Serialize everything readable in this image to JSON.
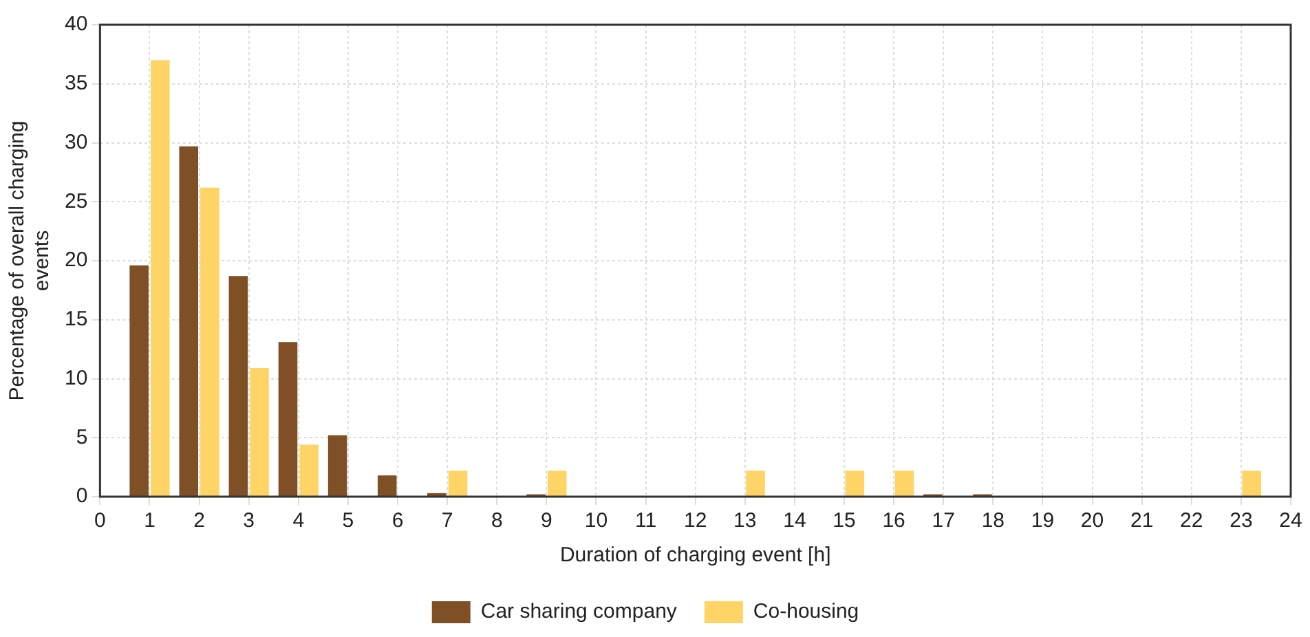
{
  "chart_data": {
    "type": "bar",
    "xlabel": "Duration of charging event [h]",
    "ylabel": "Percentage of overall charging events",
    "x": [
      1,
      2,
      3,
      4,
      5,
      6,
      7,
      8,
      9,
      10,
      11,
      12,
      13,
      14,
      15,
      16,
      17,
      18,
      19,
      20,
      21,
      22,
      23
    ],
    "series": [
      {
        "name": "Car sharing company",
        "color": "#7f4f25",
        "values": [
          19.6,
          29.7,
          18.7,
          13.1,
          5.2,
          1.8,
          0.3,
          0,
          0.2,
          0,
          0,
          0,
          0,
          0,
          0,
          0,
          0.2,
          0.2,
          0,
          0,
          0,
          0,
          0
        ]
      },
      {
        "name": "Co-housing",
        "color": "#ffd466",
        "values": [
          37,
          26.2,
          10.9,
          4.4,
          0,
          0,
          2.2,
          0,
          2.2,
          0,
          0,
          0,
          2.2,
          0,
          2.2,
          2.2,
          0,
          0,
          0,
          0,
          0,
          0,
          2.2
        ]
      }
    ],
    "xlim": [
      0,
      24
    ],
    "xticks": [
      0,
      1,
      2,
      3,
      4,
      5,
      6,
      7,
      8,
      9,
      10,
      11,
      12,
      13,
      14,
      15,
      16,
      17,
      18,
      19,
      20,
      21,
      22,
      23,
      24
    ],
    "ylim": [
      0,
      40
    ],
    "yticks": [
      0,
      5,
      10,
      15,
      20,
      25,
      30,
      35,
      40
    ],
    "grid": true,
    "legend": "bottom"
  }
}
